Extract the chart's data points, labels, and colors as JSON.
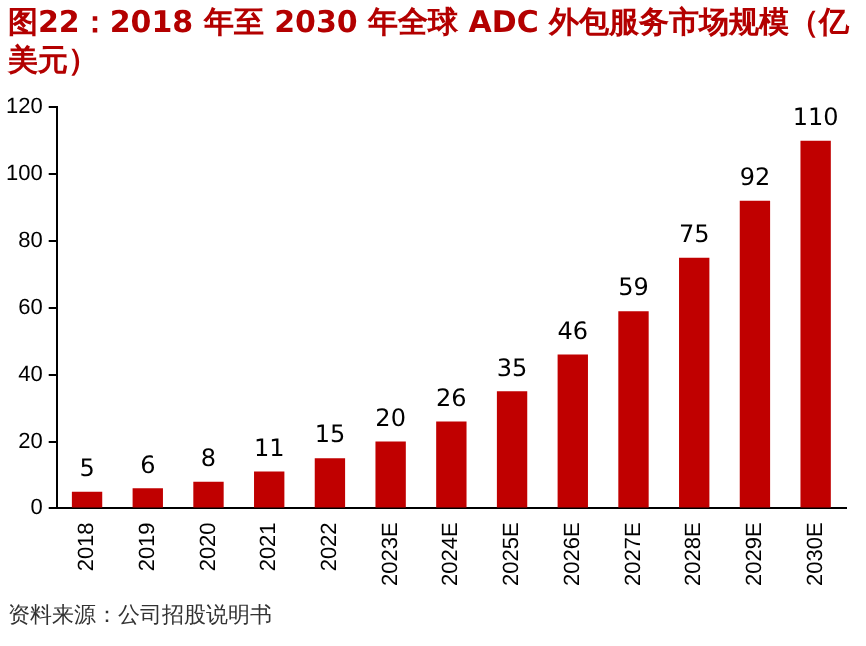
{
  "chart_data": {
    "type": "bar",
    "title": "图22：2018 年至 2030 年全球 ADC 外包服务市场规模（亿美元）",
    "categories": [
      "2018",
      "2019",
      "2020",
      "2021",
      "2022",
      "2023E",
      "2024E",
      "2025E",
      "2026E",
      "2027E",
      "2028E",
      "2029E",
      "2030E"
    ],
    "values": [
      5,
      6,
      8,
      11,
      15,
      20,
      26,
      35,
      46,
      59,
      75,
      92,
      110
    ],
    "color": "#c00000",
    "ylim": [
      0,
      120
    ],
    "yticks": [
      0,
      20,
      40,
      60,
      80,
      100,
      120
    ],
    "grid": false,
    "legend": false,
    "data_labels": true,
    "annotations": [
      "资料来源：公司招股说明书"
    ]
  }
}
